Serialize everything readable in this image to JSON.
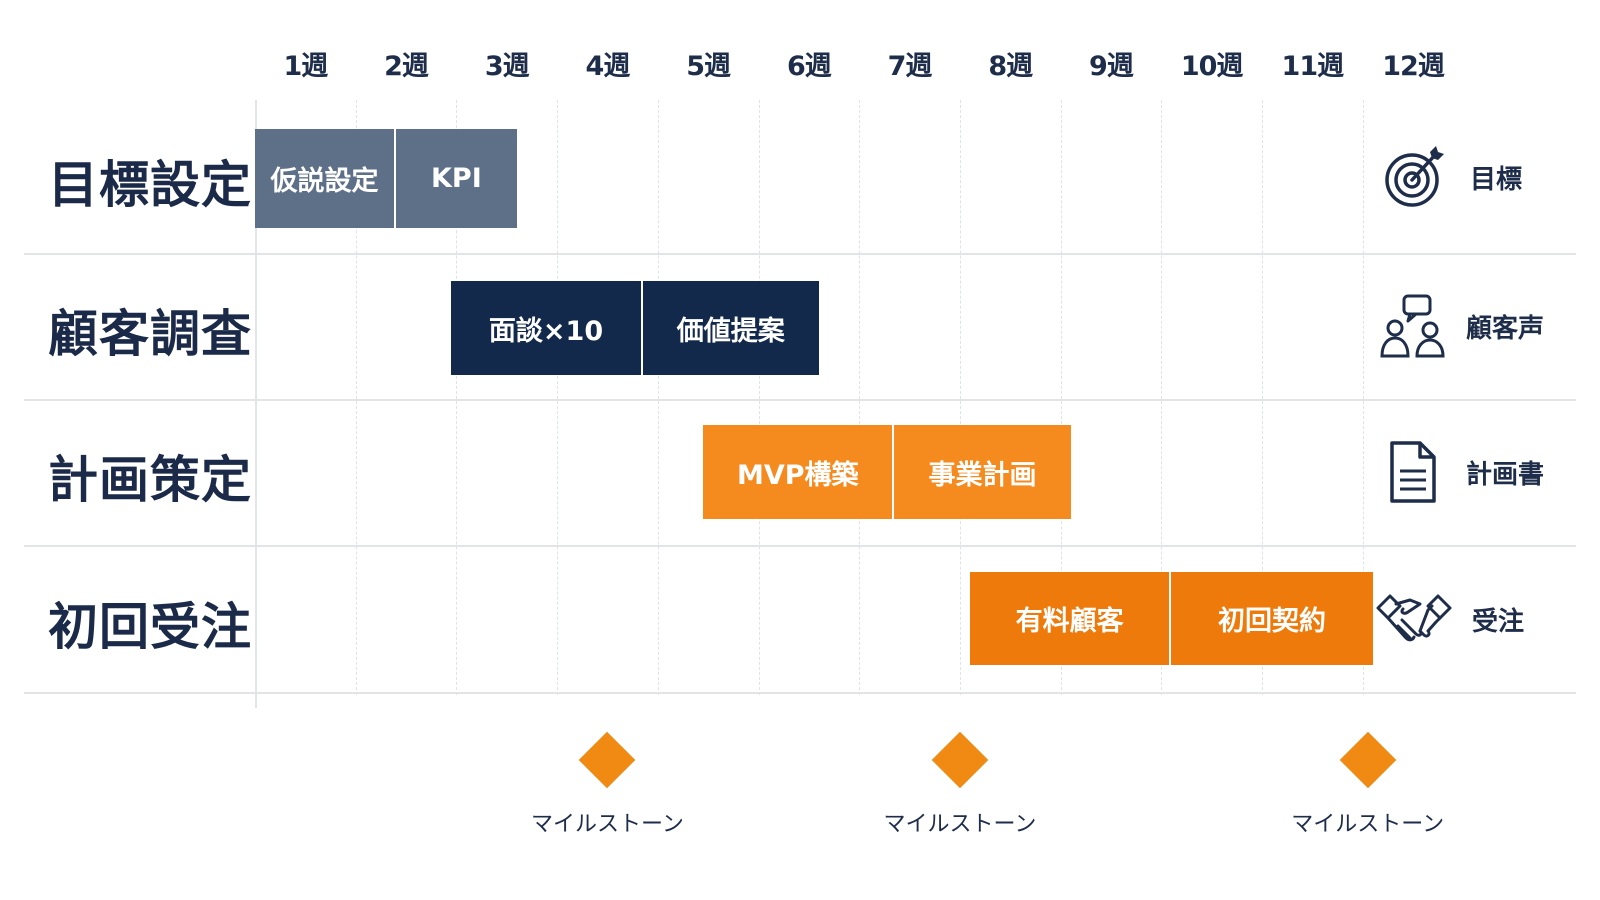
{
  "chart_data": {
    "type": "gantt",
    "weeks": [
      "1週",
      "2週",
      "3週",
      "4週",
      "5週",
      "6週",
      "7週",
      "8週",
      "9週",
      "10週",
      "11週",
      "12週"
    ],
    "rows": [
      {
        "label": "目標設定",
        "outcome": "目標",
        "icon": "target-icon",
        "color": "#5e6f88",
        "tasks": [
          {
            "label": "仮説設定",
            "start": 0.0,
            "end": 1.4
          },
          {
            "label": "KPI",
            "start": 1.4,
            "end": 2.6
          }
        ]
      },
      {
        "label": "顧客調査",
        "outcome": "顧客声",
        "icon": "customer-voice-icon",
        "color": "#13294b",
        "tasks": [
          {
            "label": "面談×10",
            "start": 1.95,
            "end": 3.85
          },
          {
            "label": "価値提案",
            "start": 3.85,
            "end": 5.6
          }
        ]
      },
      {
        "label": "計画策定",
        "outcome": "計画書",
        "icon": "document-icon",
        "color": "#f58a1f",
        "tasks": [
          {
            "label": "MVP構築",
            "start": 4.45,
            "end": 6.35
          },
          {
            "label": "事業計画",
            "start": 6.35,
            "end": 8.1
          }
        ]
      },
      {
        "label": "初回受注",
        "outcome": "受注",
        "icon": "handshake-icon",
        "color": "#ef7a0c",
        "tasks": [
          {
            "label": "有料顧客",
            "start": 7.1,
            "end": 9.1
          },
          {
            "label": "初回契約",
            "start": 9.1,
            "end": 11.1
          }
        ]
      }
    ],
    "milestones": [
      {
        "label": "マイルストーン",
        "week": 3.5
      },
      {
        "label": "マイルストーン",
        "week": 7.0
      },
      {
        "label": "マイルストーン",
        "week": 11.05
      }
    ],
    "milestone_color": "#f08a12"
  }
}
